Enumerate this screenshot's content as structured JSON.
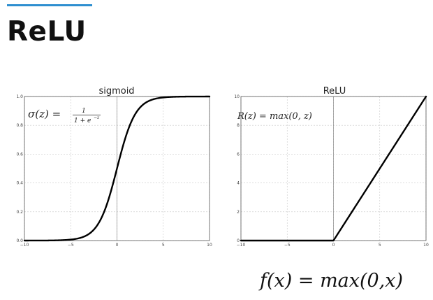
{
  "slide": {
    "title": "ReLU",
    "formula": "f(x) = max(0,x)"
  },
  "colors": {
    "accent": "#2e8fd0",
    "curve": "#000000",
    "grid": "#c8c8c8",
    "axis": "#555555"
  },
  "chart_data": [
    {
      "type": "line",
      "title": "sigmoid",
      "annotation": {
        "lhs": "σ(z) =",
        "numerator": "1",
        "denominator": "1 + e",
        "exponent": "−z"
      },
      "xlim": [
        -10,
        10
      ],
      "ylim": [
        0,
        1.0
      ],
      "xticks": [
        -10,
        -5,
        0,
        5,
        10
      ],
      "yticks": [
        0.0,
        0.2,
        0.4,
        0.6,
        0.8,
        1.0
      ],
      "xtick_labels": [
        "−10",
        "−5",
        "0",
        "5",
        "10"
      ],
      "ytick_labels": [
        "0.0",
        "0.2",
        "0.4",
        "0.6",
        "0.8",
        "1.0"
      ],
      "grid": true,
      "series": [
        {
          "x": [
            -10,
            -9,
            -8,
            -7,
            -6,
            -5,
            -4,
            -3,
            -2.5,
            -2,
            -1.5,
            -1,
            -0.5,
            0,
            0.5,
            1,
            1.5,
            2,
            2.5,
            3,
            4,
            5,
            6,
            7,
            8,
            9,
            10
          ],
          "y": [
            0.0,
            0.0,
            0.0,
            0.0,
            0.0,
            0.01,
            0.02,
            0.05,
            0.08,
            0.12,
            0.18,
            0.27,
            0.38,
            0.5,
            0.62,
            0.73,
            0.82,
            0.88,
            0.92,
            0.95,
            0.98,
            0.99,
            1.0,
            1.0,
            1.0,
            1.0,
            1.0
          ]
        }
      ]
    },
    {
      "type": "line",
      "title": "ReLU",
      "annotation": {
        "text": "R(z) = max(0,  z)"
      },
      "xlim": [
        -10,
        10
      ],
      "ylim": [
        0,
        10
      ],
      "xticks": [
        -10,
        -5,
        0,
        5,
        10
      ],
      "yticks": [
        0,
        2,
        4,
        6,
        8,
        10
      ],
      "xtick_labels": [
        "−10",
        "−5",
        "0",
        "5",
        "10"
      ],
      "ytick_labels": [
        "0",
        "2",
        "4",
        "6",
        "8",
        "10"
      ],
      "grid": true,
      "series": [
        {
          "x": [
            -10,
            0,
            10
          ],
          "y": [
            0,
            0,
            10
          ]
        }
      ]
    }
  ]
}
